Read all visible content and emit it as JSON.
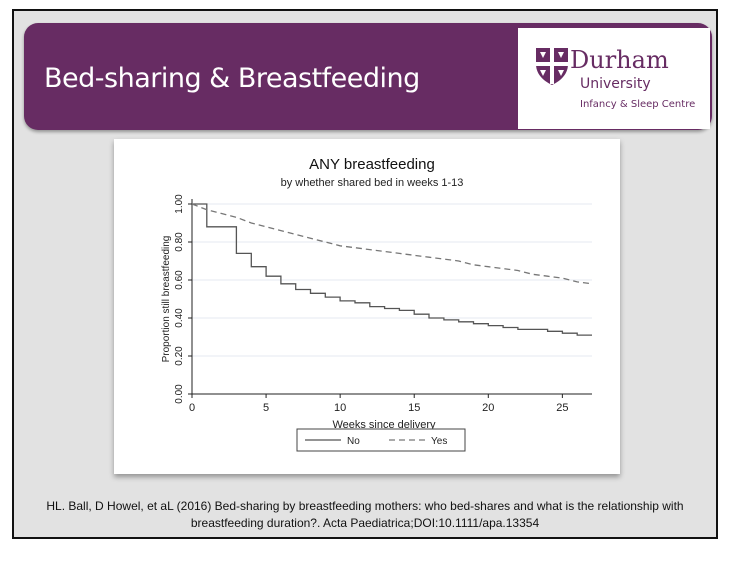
{
  "slide": {
    "title": "Bed-sharing & Breastfeeding",
    "logo": {
      "name": "Durham",
      "subtitle": "University",
      "centre": "Infancy & Sleep Centre"
    },
    "citation": {
      "line1": "HL. Ball, D Howel, et aL (2016) Bed-sharing by breastfeeding mothers: who bed-shares and what is the relationship with",
      "line2": "breastfeeding duration?. Acta Paediatrica;DOI:10.1111/apa.13354"
    }
  },
  "colors": {
    "brand_purple": "#672c63",
    "slide_bg": "#e2e2e2"
  },
  "chart_data": {
    "type": "line",
    "title": "ANY breastfeeding",
    "subtitle": "by whether shared bed in weeks 1-13",
    "xlabel": "Weeks since delivery",
    "ylabel": "Proportion still breastfeeding",
    "xlim": [
      0,
      27
    ],
    "ylim": [
      0,
      1
    ],
    "xticks": [
      0,
      5,
      10,
      15,
      20,
      25
    ],
    "yticks": [
      0,
      0.2,
      0.4,
      0.6,
      0.8,
      1.0
    ],
    "xtick_labels": [
      "0",
      "5",
      "10",
      "15",
      "20",
      "25"
    ],
    "ytick_labels": [
      "0.00",
      "0.20",
      "0.40",
      "0.60",
      "0.80",
      "1.00"
    ],
    "grid": "horizontal",
    "legend_position": "bottom-center",
    "series": [
      {
        "name": "No",
        "style": "solid",
        "step": true,
        "x": [
          0,
          1,
          1,
          3,
          3,
          4,
          4,
          5,
          5,
          6,
          6,
          7,
          7,
          8,
          8,
          9,
          9,
          10,
          10,
          11,
          11,
          12,
          12,
          13,
          13,
          14,
          14,
          15,
          15,
          16,
          16,
          17,
          17,
          18,
          18,
          19,
          19,
          20,
          20,
          21,
          21,
          22,
          22,
          23,
          23,
          24,
          24,
          25,
          25,
          26,
          26,
          27
        ],
        "y": [
          1.0,
          1.0,
          0.88,
          0.88,
          0.74,
          0.74,
          0.67,
          0.67,
          0.62,
          0.62,
          0.58,
          0.58,
          0.55,
          0.55,
          0.53,
          0.53,
          0.51,
          0.51,
          0.49,
          0.49,
          0.48,
          0.48,
          0.46,
          0.46,
          0.45,
          0.45,
          0.44,
          0.44,
          0.42,
          0.42,
          0.4,
          0.4,
          0.39,
          0.39,
          0.38,
          0.38,
          0.37,
          0.37,
          0.36,
          0.36,
          0.35,
          0.35,
          0.34,
          0.34,
          0.34,
          0.34,
          0.33,
          0.33,
          0.32,
          0.32,
          0.31,
          0.31
        ]
      },
      {
        "name": "Yes",
        "style": "dashed",
        "step": false,
        "x": [
          0,
          1,
          2,
          3,
          4,
          5,
          6,
          7,
          8,
          9,
          10,
          11,
          12,
          13,
          14,
          15,
          16,
          17,
          18,
          19,
          20,
          21,
          22,
          23,
          24,
          25,
          26,
          27
        ],
        "y": [
          1.0,
          0.97,
          0.95,
          0.93,
          0.9,
          0.88,
          0.86,
          0.84,
          0.82,
          0.8,
          0.78,
          0.77,
          0.76,
          0.75,
          0.74,
          0.73,
          0.72,
          0.71,
          0.7,
          0.68,
          0.67,
          0.66,
          0.65,
          0.63,
          0.62,
          0.61,
          0.59,
          0.58
        ]
      }
    ]
  }
}
